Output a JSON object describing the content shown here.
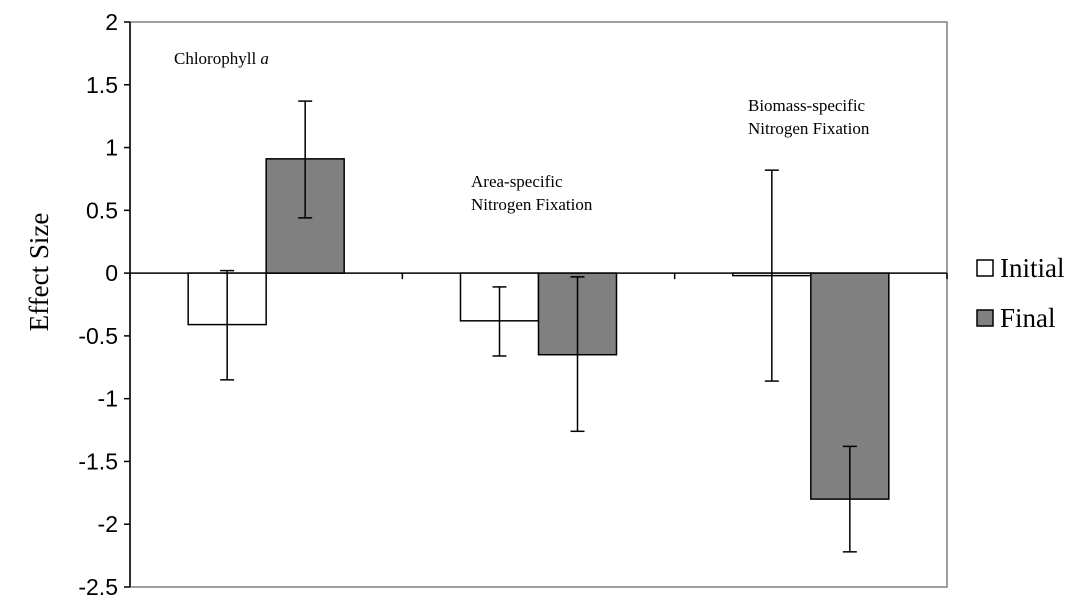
{
  "chart_data": {
    "type": "bar",
    "title": "",
    "xlabel": "",
    "ylabel": "Effect Size",
    "ylim": [
      -2.5,
      2
    ],
    "yticks": [
      "2",
      "1.5",
      "1",
      "0.5",
      "0",
      "-0.5",
      "-1",
      "-1.5",
      "-2",
      "-2.5"
    ],
    "categories": [
      "Chlorophyll a",
      "Area-specific Nitrogen Fixation",
      "Biomass-specific Nitrogen Fixation"
    ],
    "annotations": [
      {
        "lines": [
          "Chlorophyll",
          "a"
        ]
      },
      {
        "lines": [
          "Area-specific",
          "Nitrogen Fixation"
        ]
      },
      {
        "lines": [
          "Biomass-specific",
          "Nitrogen Fixation"
        ]
      }
    ],
    "series": [
      {
        "name": "Initial",
        "color": "#ffffff",
        "values": [
          -0.41,
          -0.38,
          -0.02
        ],
        "err_low": [
          -0.85,
          -0.66,
          -0.86
        ],
        "err_high": [
          0.02,
          -0.11,
          0.82
        ]
      },
      {
        "name": "Final",
        "color": "#808080",
        "values": [
          0.91,
          -0.65,
          -1.8
        ],
        "err_low": [
          0.44,
          -1.26,
          -2.22
        ],
        "err_high": [
          1.37,
          -0.03,
          -1.38
        ]
      }
    ],
    "grid": false,
    "legend_position": "right"
  }
}
